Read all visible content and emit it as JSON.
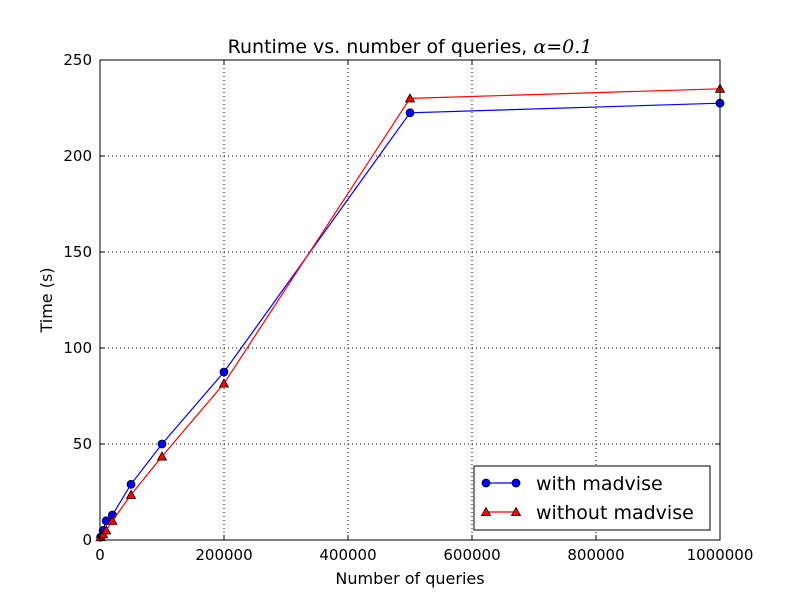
{
  "chart_data": {
    "type": "line",
    "title": "Runtime vs. number of queries, ",
    "title_math": "α=0.1",
    "xlabel": "Number of queries",
    "ylabel": "Time (s)",
    "xlim": [
      0,
      1000000
    ],
    "ylim": [
      0,
      250
    ],
    "x_ticks": [
      0,
      200000,
      400000,
      600000,
      800000,
      1000000
    ],
    "y_ticks": [
      0,
      50,
      100,
      150,
      200,
      250
    ],
    "grid": true,
    "legend_position": "lower-right",
    "series": [
      {
        "name": "with madvise",
        "color": "#0000ff",
        "marker": "circle",
        "x": [
          1000,
          5000,
          10000,
          20000,
          50000,
          100000,
          200000,
          500000,
          1000000
        ],
        "y": [
          1.5,
          5,
          10,
          13,
          29,
          50,
          87.5,
          222.5,
          227.5
        ]
      },
      {
        "name": "without madvise",
        "color": "#ff0000",
        "marker": "triangle",
        "x": [
          1000,
          5000,
          10000,
          20000,
          50000,
          100000,
          200000,
          500000,
          1000000
        ],
        "y": [
          1.5,
          3,
          5,
          10,
          23.5,
          43.5,
          81.5,
          230,
          235
        ]
      }
    ]
  }
}
